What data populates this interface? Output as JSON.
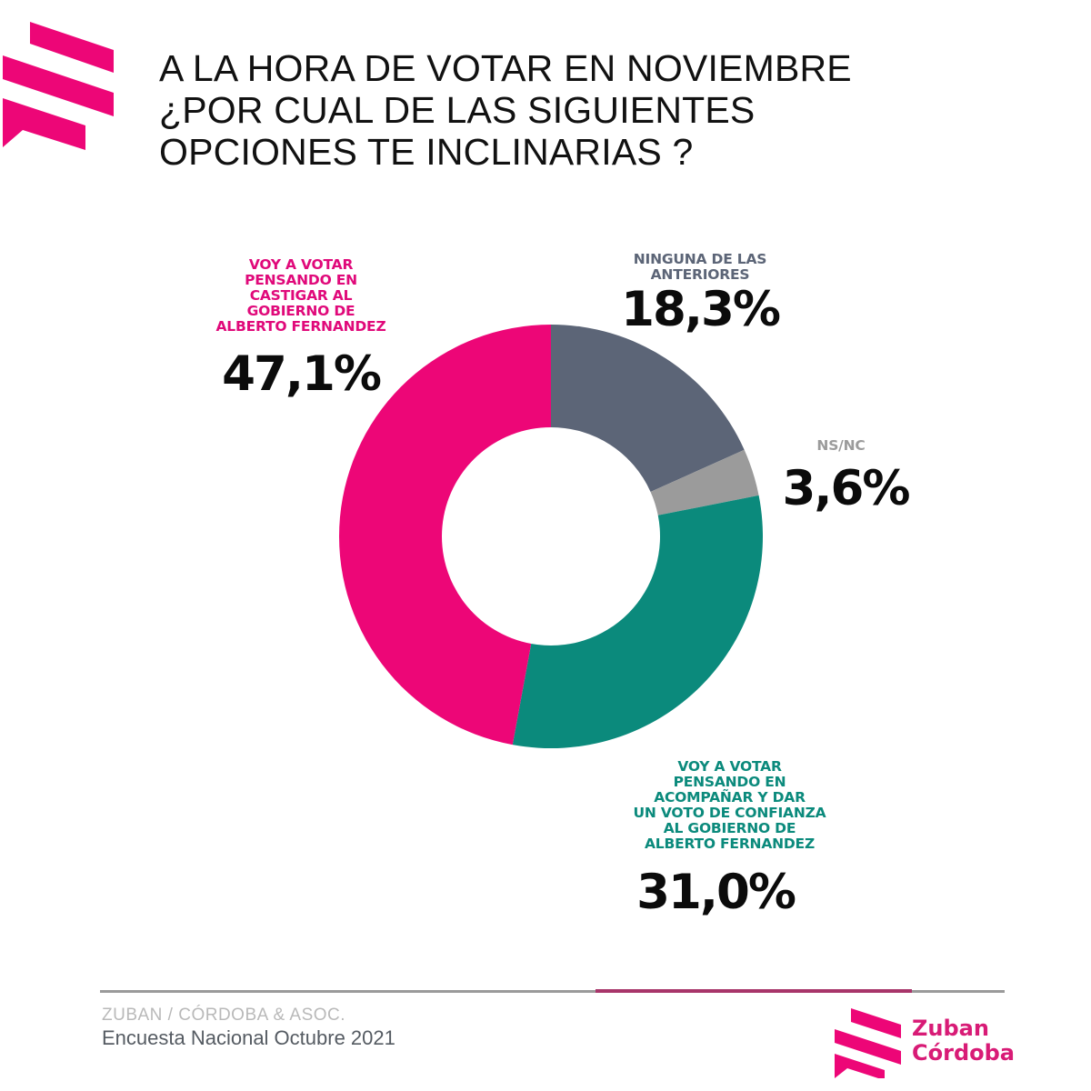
{
  "header": {
    "title_lines": [
      "A LA HORA DE VOTAR EN NOVIEMBRE",
      "¿POR CUAL DE LAS SIGUIENTES",
      "OPCIONES TE INCLINARIAS ?"
    ],
    "logo_icon": "zuban-cordoba-stripes-logo"
  },
  "chart_data": {
    "type": "pie",
    "variant": "donut",
    "title": "A LA HORA DE VOTAR EN NOVIEMBRE ¿POR CUAL DE LAS SIGUIENTES OPCIONES TE INCLINARIAS ?",
    "unit": "%",
    "start": "12 o'clock, clockwise",
    "slices": [
      {
        "key": "ninguna",
        "label_lines": [
          "NINGUNA DE LAS",
          "ANTERIORES"
        ],
        "value": 18.3,
        "display": "18,3%",
        "color": "#5c6577",
        "label_color": "#5c6577"
      },
      {
        "key": "nsnc",
        "label_lines": [
          "NS/NC"
        ],
        "value": 3.6,
        "display": "3,6%",
        "color": "#9b9b9b",
        "label_color": "#9b9b9b"
      },
      {
        "key": "acompanar",
        "label_lines": [
          "VOY A VOTAR",
          "PENSANDO EN",
          "ACOMPAÑAR Y DAR",
          "UN VOTO DE CONFIANZA",
          "AL GOBIERNO DE",
          "ALBERTO FERNANDEZ"
        ],
        "value": 31.0,
        "display": "31,0%",
        "color": "#0b8a7c",
        "label_color": "#0b8a7c"
      },
      {
        "key": "castigar",
        "label_lines": [
          "VOY A VOTAR",
          "PENSANDO EN",
          "CASTIGAR AL",
          "GOBIERNO DE",
          "ALBERTO FERNANDEZ"
        ],
        "value": 47.1,
        "display": "47,1%",
        "color": "#ed0677",
        "label_color": "#e0097a"
      }
    ]
  },
  "footer": {
    "source_line": "ZUBAN / CÓRDOBA & ASOC.",
    "survey_line": "Encuesta Nacional Octubre 2021",
    "brand_lines": [
      "Zuban",
      "Córdoba"
    ],
    "accent_color": "#ed0677"
  }
}
